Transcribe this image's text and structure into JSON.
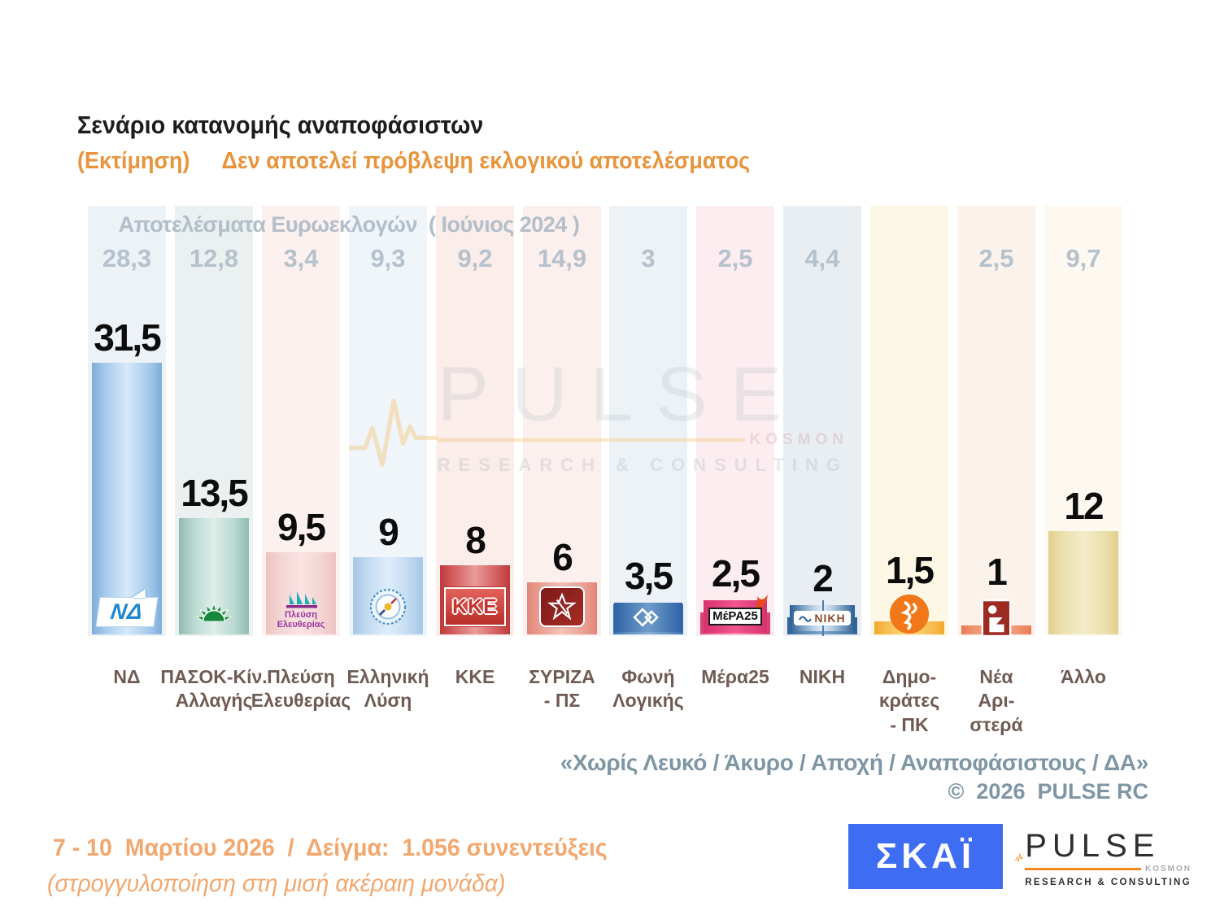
{
  "header": {
    "title": "Σενάριο κατανομής αναποφάσιστων",
    "subtitle_label": "(Εκτίμηση)",
    "subtitle_text": "Δεν αποτελεί πρόβλεψη εκλογικού αποτελέσματος"
  },
  "chart": {
    "euro_header": "Αποτελέσματα Ευρωεκλογών  ( Ιούνιος 2024 )",
    "parties": [
      {
        "id": "nd",
        "label_lines": [
          "ΝΔ"
        ],
        "euro": "28,3",
        "value": "31,5",
        "logo": "nd-flag-logo",
        "logo_text": "ΝΔ",
        "colors": {
          "column_bg": "#EDF2F7",
          "bar_edge": "#7FACDA",
          "bar_mid": "#A8CBEC",
          "bar_light": "#D6E9FA"
        }
      },
      {
        "id": "pasok",
        "label_lines": [
          "ΠΑΣΟΚ-Κίν.",
          "Αλλαγής"
        ],
        "euro": "12,8",
        "value": "13,5",
        "logo": "pasok-sun-logo",
        "logo_text": "",
        "colors": {
          "column_bg": "#EBF1F1",
          "bar_edge": "#8FBCB2",
          "bar_mid": "#B8D8D0",
          "bar_light": "#DFEEE9"
        }
      },
      {
        "id": "plefsi",
        "label_lines": [
          "Πλεύση",
          "Ελευθερίας"
        ],
        "euro": "3,4",
        "value": "9,5",
        "logo": "plefsi-ship-logo",
        "logo_text": "Πλεύση|Ελευθερίας",
        "colors": {
          "column_bg": "#FCF1EF",
          "bar_edge": "#EDC3C1",
          "bar_mid": "#F3D4D3",
          "bar_light": "#FAE4E3"
        }
      },
      {
        "id": "elliniki",
        "label_lines": [
          "Ελληνική",
          "Λύση"
        ],
        "euro": "9,3",
        "value": "9",
        "logo": "elliniki-lysi-compass-logo",
        "logo_text": "",
        "colors": {
          "column_bg": "#F0F5FA",
          "bar_edge": "#A6C7E8",
          "bar_mid": "#C2DAF1",
          "bar_light": "#DFEDFA"
        }
      },
      {
        "id": "kke",
        "label_lines": [
          "ΚΚΕ"
        ],
        "euro": "9,2",
        "value": "8",
        "logo": "kke-logo",
        "logo_text": "ΚΚΕ",
        "colors": {
          "column_bg": "#FAEDEA",
          "bar_edge": "#BE3A3C",
          "bar_mid": "#D4605F",
          "bar_light": "#E99C9C"
        }
      },
      {
        "id": "syriza",
        "label_lines": [
          "ΣΥΡΙΖΑ",
          "- ΠΣ"
        ],
        "euro": "14,9",
        "value": "6",
        "logo": "syriza-star-logo",
        "logo_text": "",
        "colors": {
          "column_bg": "#FBF0ED",
          "bar_edge": "#E28678",
          "bar_mid": "#EBA093",
          "bar_light": "#F4C2B8"
        }
      },
      {
        "id": "foni",
        "label_lines": [
          "Φωνή",
          "Λογικής"
        ],
        "euro": "3",
        "value": "3,5",
        "logo": "foni-logikis-logo",
        "logo_text": "",
        "colors": {
          "column_bg": "#EDF2F6",
          "bar_edge": "#3A6FAE",
          "bar_mid": "#5E8FC2",
          "bar_light": "#88AED4"
        }
      },
      {
        "id": "mera25",
        "label_lines": [
          "Μέρα25"
        ],
        "euro": "2,5",
        "value": "2,5",
        "logo": "mera25-logo",
        "logo_text": "ΜέΡΑ25",
        "colors": {
          "column_bg": "#FCEDF1",
          "bar_edge": "#D84072",
          "bar_mid": "#E8608E",
          "bar_light": "#F287AC"
        }
      },
      {
        "id": "niki",
        "label_lines": [
          "ΝΙΚΗ"
        ],
        "euro": "4,4",
        "value": "2",
        "logo": "niki-logo",
        "logo_text": "ΝΙΚΗ",
        "colors": {
          "column_bg": "#E9EEF3",
          "bar_edge": "#2E6397",
          "bar_mid": "#5585B2",
          "bar_light": "#7FA5C8"
        }
      },
      {
        "id": "dimokrates",
        "label_lines": [
          "Δημο-",
          "κράτες",
          "- ΠΚ"
        ],
        "euro": "",
        "value": "1,5",
        "logo": "dimokrates-logo",
        "logo_text": "",
        "colors": {
          "column_bg": "#FDF8E5",
          "bar_edge": "#F2A92E",
          "bar_mid": "#F7C055",
          "bar_light": "#FCD983"
        }
      },
      {
        "id": "nea",
        "label_lines": [
          "Νέα",
          "Αρι-",
          "στερά"
        ],
        "euro": "2,5",
        "value": "1",
        "logo": "nea-aristera-logo",
        "logo_text": "",
        "colors": {
          "column_bg": "#FBF2EB",
          "bar_edge": "#E97C55",
          "bar_mid": "#EF9671",
          "bar_light": "#F5B093"
        }
      },
      {
        "id": "allo",
        "label_lines": [
          "Άλλο"
        ],
        "euro": "9,7",
        "value": "12",
        "logo": "none",
        "logo_text": "",
        "colors": {
          "column_bg": "#FDF9F1",
          "bar_edge": "#E2CF8E",
          "bar_mid": "#EBDFAC",
          "bar_light": "#F4EDCB"
        }
      }
    ]
  },
  "chart_data": {
    "type": "bar",
    "title": "Σενάριο κατανομής αναποφάσιστων (Εκτίμηση)",
    "categories": [
      "ΝΔ",
      "ΠΑΣΟΚ-Κίν. Αλλαγής",
      "Πλεύση Ελευθερίας",
      "Ελληνική Λύση",
      "ΚΚΕ",
      "ΣΥΡΙΖΑ - ΠΣ",
      "Φωνή Λογικής",
      "Μέρα25",
      "ΝΙΚΗ",
      "Δημοκράτες - ΠΚ",
      "Νέα Αριστερά",
      "Άλλο"
    ],
    "series": [
      {
        "name": "Σενάριο κατανομής αναποφάσιστων (Εκτίμηση)",
        "values": [
          31.5,
          13.5,
          9.5,
          9,
          8,
          6,
          3.5,
          2.5,
          2,
          1.5,
          1,
          12
        ]
      },
      {
        "name": "Αποτελέσματα Ευρωεκλογών (Ιούνιος 2024)",
        "values": [
          28.3,
          12.8,
          3.4,
          9.3,
          9.2,
          14.9,
          3,
          2.5,
          4.4,
          null,
          2.5,
          9.7
        ]
      }
    ],
    "xlabel": "",
    "ylabel": "",
    "ylim": [
      0,
      50
    ],
    "grid": false,
    "legend_position": "none",
    "value_label_format": "comma-decimal"
  },
  "footer": {
    "note": "«Χωρίς Λευκό / Άκυρο / Αποχή / Αναποφάσιστους / ΔΑ»",
    "copyright": "©  2026  PULSE RC"
  },
  "survey": {
    "line1": "7 - 10  Μαρτίου 2026  /  Δείγμα:  1.056 συνεντεύξεις",
    "line2": "(στρογγυλοποίηση στη μισή ακέραιη μονάδα)"
  },
  "logos": {
    "skai": "ΣΚΑΪ",
    "pulse_name": "PULSE",
    "pulse_kosmon": "KOSMON",
    "pulse_sub": "RESEARCH & CONSULTING"
  },
  "watermark": {
    "name": "PULSE",
    "kosmon": "KOSMON",
    "sub": "RESEARCH & CONSULTING"
  },
  "accent_colors": {
    "orange_text": "#E8943C",
    "orange_light_text": "#F2A76E",
    "gray_note_text": "#7E96A4",
    "gray_euro_text": "#B5C1CC",
    "party_label_text": "#6F5B53",
    "skai_blue": "#3E6CF2",
    "pulse_orange": "#F08A1E"
  }
}
